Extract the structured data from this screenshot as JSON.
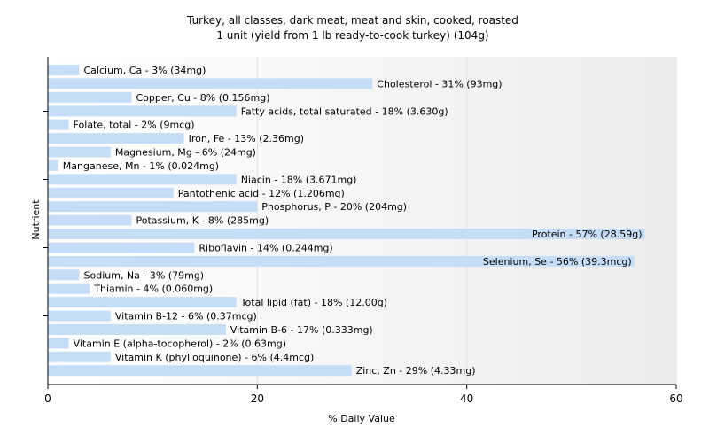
{
  "chart_data": {
    "type": "bar",
    "orientation": "horizontal",
    "title": "Turkey, all classes, dark meat, meat and skin, cooked, roasted",
    "subtitle": "1 unit (yield from 1 lb ready-to-cook turkey) (104g)",
    "xlabel": "% Daily Value",
    "ylabel": "Nutrient",
    "xlim": [
      0,
      60
    ],
    "xticks": [
      "0",
      "20",
      "40",
      "60"
    ],
    "grid": "vertical",
    "bar_color": "#c6ddf7",
    "categories": [
      "Calcium, Ca - 3% (34mg)",
      "Cholesterol - 31% (93mg)",
      "Copper, Cu - 8% (0.156mg)",
      "Fatty acids, total saturated - 18% (3.630g)",
      "Folate, total - 2% (9mcg)",
      "Iron, Fe - 13% (2.36mg)",
      "Magnesium, Mg - 6% (24mg)",
      "Manganese, Mn - 1% (0.024mg)",
      "Niacin - 18% (3.671mg)",
      "Pantothenic acid - 12% (1.206mg)",
      "Phosphorus, P - 20% (204mg)",
      "Potassium, K - 8% (285mg)",
      "Protein - 57% (28.59g)",
      "Riboflavin - 14% (0.244mg)",
      "Selenium, Se - 56% (39.3mcg)",
      "Sodium, Na - 3% (79mg)",
      "Thiamin - 4% (0.060mg)",
      "Total lipid (fat) - 18% (12.00g)",
      "Vitamin B-12 - 6% (0.37mcg)",
      "Vitamin B-6 - 17% (0.333mg)",
      "Vitamin E (alpha-tocopherol) - 2% (0.63mg)",
      "Vitamin K (phylloquinone) - 6% (4.4mcg)",
      "Zinc, Zn - 29% (4.33mg)"
    ],
    "values": [
      3,
      31,
      8,
      18,
      2,
      13,
      6,
      1,
      18,
      12,
      20,
      8,
      57,
      14,
      56,
      3,
      4,
      18,
      6,
      17,
      2,
      6,
      29
    ]
  }
}
